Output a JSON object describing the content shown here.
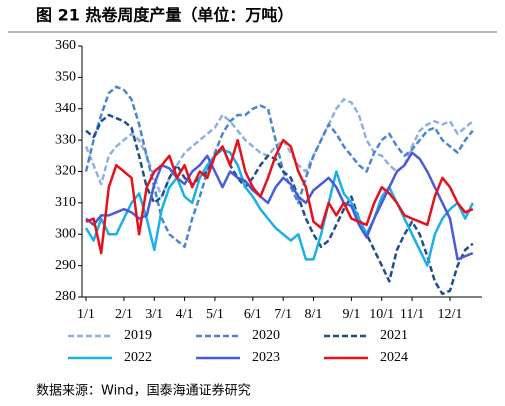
{
  "chart_data": {
    "type": "line",
    "title": "图 21 热卷周度产量（单位：万吨）",
    "source": "数据来源：Wind，国泰海通证券研究",
    "categories": [
      "1/1",
      null,
      null,
      null,
      null,
      "2/1",
      null,
      null,
      null,
      "3/1",
      null,
      null,
      null,
      "4/1",
      null,
      null,
      null,
      "5/1",
      null,
      null,
      null,
      null,
      "6/1",
      null,
      null,
      null,
      "7/1",
      null,
      null,
      null,
      "8/1",
      null,
      null,
      null,
      null,
      "9/1",
      null,
      null,
      null,
      "10/1",
      null,
      null,
      null,
      "11/1",
      null,
      null,
      null,
      null,
      "12/1",
      null,
      null,
      null
    ],
    "ylim": [
      280,
      360
    ],
    "yticks": [
      280,
      290,
      300,
      310,
      320,
      330,
      340,
      350,
      360
    ],
    "series": [
      {
        "name": "2019",
        "color": "#8fb0e0",
        "dashed": true,
        "values": [
          328,
          322,
          316,
          325,
          328,
          330,
          332,
          330,
          325,
          318,
          312,
          318,
          322,
          326,
          328,
          330,
          332,
          334,
          338,
          336,
          333,
          330,
          328,
          326,
          325,
          328,
          330,
          326,
          322,
          320,
          325,
          330,
          335,
          340,
          343,
          342,
          338,
          330,
          326,
          325,
          322,
          320,
          322,
          328,
          333,
          335,
          336,
          335,
          336,
          332,
          334,
          336
        ]
      },
      {
        "name": "2020",
        "color": "#4a86d0",
        "dashed": true,
        "values": [
          320,
          330,
          338,
          345,
          347,
          346,
          343,
          335,
          325,
          315,
          305,
          300,
          298,
          296,
          305,
          312,
          320,
          326,
          332,
          336,
          338,
          338,
          340,
          341,
          340,
          330,
          320,
          315,
          310,
          318,
          325,
          330,
          335,
          332,
          328,
          325,
          322,
          320,
          326,
          330,
          332,
          328,
          325,
          327,
          330,
          333,
          334,
          330,
          328,
          326,
          330,
          333
        ]
      },
      {
        "name": "2021",
        "color": "#1f4e8c",
        "dashed": true,
        "values": [
          333,
          331,
          336,
          338,
          337,
          336,
          334,
          325,
          315,
          310,
          312,
          318,
          322,
          318,
          316,
          318,
          320,
          325,
          328,
          322,
          318,
          315,
          318,
          322,
          325,
          324,
          320,
          318,
          312,
          305,
          300,
          296,
          298,
          303,
          308,
          312,
          305,
          300,
          295,
          290,
          285,
          295,
          300,
          304,
          300,
          293,
          285,
          281,
          282,
          290,
          295,
          297
        ]
      },
      {
        "name": "2022",
        "color": "#1ab0e8",
        "dashed": false,
        "values": [
          302,
          298,
          305,
          300,
          300,
          305,
          310,
          313,
          305,
          295,
          308,
          315,
          318,
          312,
          310,
          318,
          322,
          325,
          327,
          326,
          322,
          315,
          312,
          308,
          305,
          302,
          300,
          298,
          300,
          292,
          292,
          300,
          310,
          320,
          313,
          310,
          305,
          300,
          305,
          312,
          315,
          310,
          305,
          300,
          295,
          290,
          300,
          305,
          308,
          310,
          305,
          310
        ]
      },
      {
        "name": "2023",
        "color": "#4a5bd9",
        "dashed": false,
        "values": [
          305,
          303,
          306,
          306,
          307,
          308,
          307,
          305,
          306,
          316,
          322,
          321,
          318,
          316,
          320,
          322,
          325,
          320,
          315,
          320,
          318,
          317,
          314,
          312,
          310,
          315,
          318,
          316,
          312,
          310,
          314,
          316,
          318,
          315,
          310,
          309,
          303,
          299,
          305,
          310,
          315,
          320,
          322,
          326,
          324,
          320,
          315,
          310,
          305,
          292,
          293,
          294
        ]
      },
      {
        "name": "2024",
        "color": "#e8101a",
        "dashed": false,
        "values": [
          304,
          305,
          294,
          315,
          322,
          320,
          318,
          300,
          315,
          320,
          322,
          325,
          318,
          322,
          315,
          320,
          318,
          325,
          328,
          322,
          330,
          320,
          315,
          312,
          318,
          325,
          330,
          328,
          320,
          315,
          304,
          302,
          310,
          306,
          310,
          305,
          304,
          303,
          310,
          315,
          313,
          310,
          306,
          305,
          304,
          303,
          312,
          318,
          315,
          310,
          307,
          308
        ]
      }
    ]
  }
}
